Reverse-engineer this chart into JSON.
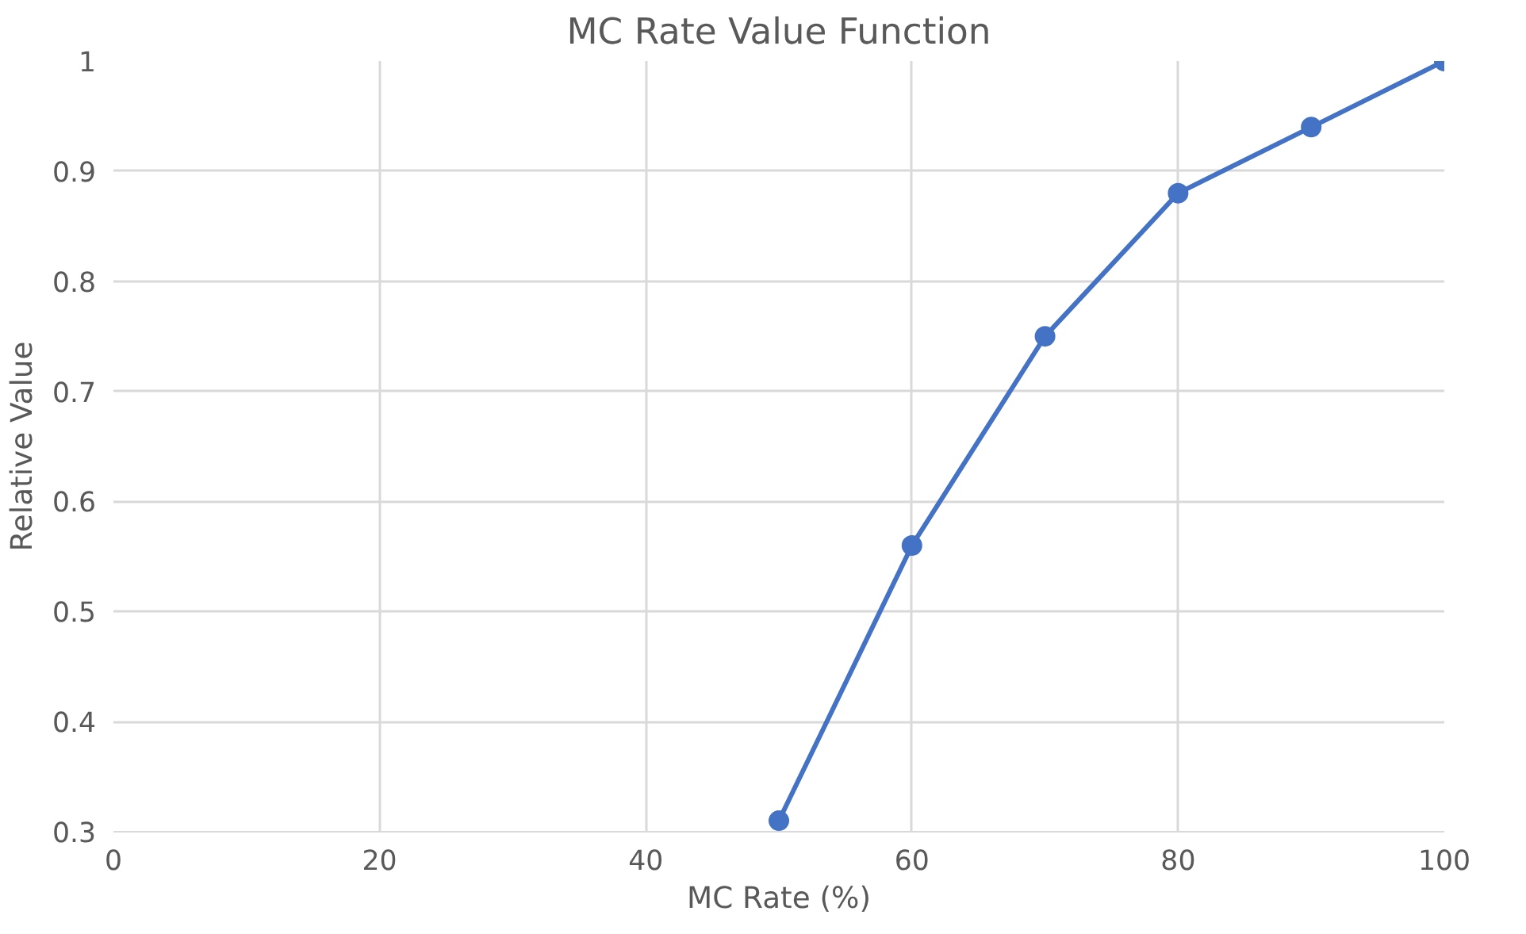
{
  "chart_data": {
    "type": "line",
    "title": "MC Rate Value Function",
    "xlabel": "MC Rate (%)",
    "ylabel": "Relative Value",
    "x": [
      50,
      60,
      70,
      80,
      90,
      100
    ],
    "series": [
      {
        "color": "#4472c4",
        "values": [
          0.31,
          0.56,
          0.75,
          0.88,
          0.94,
          1
        ]
      }
    ],
    "xlim": [
      0,
      100
    ],
    "xticks": [
      0,
      20,
      40,
      60,
      80,
      100
    ],
    "ylim": [
      0.3,
      1
    ],
    "yticks": [
      {
        "value": 0.3,
        "label": "0.3"
      },
      {
        "value": 0.4,
        "label": "0.4"
      },
      {
        "value": 0.5,
        "label": "0.5"
      },
      {
        "value": 0.6,
        "label": "0.6"
      },
      {
        "value": 0.7,
        "label": "0.7"
      },
      {
        "value": 0.8,
        "label": "0.8"
      },
      {
        "value": 0.9,
        "label": "0.9"
      },
      {
        "value": 1,
        "label": "1"
      }
    ],
    "grid": true,
    "marker": "circle",
    "line_style": "solid"
  }
}
